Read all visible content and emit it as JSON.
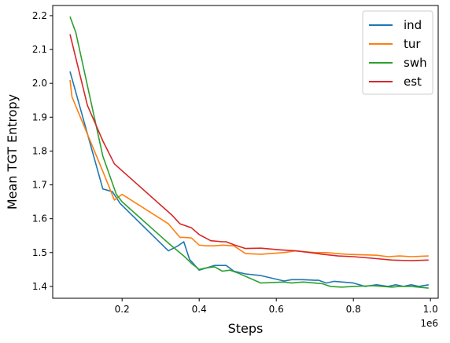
{
  "chart_data": {
    "type": "line",
    "xlabel": "Steps",
    "ylabel": "Mean TGT Entropy",
    "x_scale_label": "1e6",
    "xlim": [
      20000,
      1020000
    ],
    "ylim": [
      1.365,
      2.23
    ],
    "x_ticks": [
      200000,
      400000,
      600000,
      800000,
      1000000
    ],
    "x_tick_labels": [
      "0.2",
      "0.4",
      "0.6",
      "0.8",
      "1.0"
    ],
    "y_ticks": [
      1.4,
      1.5,
      1.6,
      1.7,
      1.8,
      1.9,
      2.0,
      2.1,
      2.2
    ],
    "y_tick_labels": [
      "1.4",
      "1.5",
      "1.6",
      "1.7",
      "1.8",
      "1.9",
      "2.0",
      "2.1",
      "2.2"
    ],
    "grid": false,
    "legend_position": "top-right",
    "series": [
      {
        "name": "ind",
        "color": "#1f77b4",
        "x": [
          65000,
          150000,
          175000,
          195000,
          320000,
          345000,
          360000,
          375000,
          400000,
          440000,
          470000,
          490000,
          520000,
          560000,
          620000,
          640000,
          670000,
          700000,
          710000,
          730000,
          750000,
          780000,
          800000,
          830000,
          860000,
          890000,
          910000,
          930000,
          950000,
          970000,
          995000
        ],
        "y": [
          2.035,
          1.688,
          1.68,
          1.645,
          1.505,
          1.52,
          1.532,
          1.48,
          1.448,
          1.462,
          1.462,
          1.445,
          1.437,
          1.432,
          1.416,
          1.42,
          1.42,
          1.418,
          1.418,
          1.41,
          1.415,
          1.412,
          1.41,
          1.4,
          1.405,
          1.4,
          1.405,
          1.4,
          1.405,
          1.4,
          1.405
        ]
      },
      {
        "name": "tur",
        "color": "#ff7f0e",
        "x": [
          65000,
          70000,
          150000,
          180000,
          200000,
          320000,
          350000,
          360000,
          380000,
          400000,
          420000,
          440000,
          460000,
          490000,
          520000,
          560000,
          620000,
          650000,
          700000,
          730000,
          780000,
          860000,
          890000,
          920000,
          950000,
          995000
        ],
        "y": [
          2.01,
          1.96,
          1.74,
          1.655,
          1.672,
          1.585,
          1.545,
          1.545,
          1.543,
          1.522,
          1.52,
          1.52,
          1.522,
          1.52,
          1.497,
          1.495,
          1.5,
          1.505,
          1.5,
          1.5,
          1.495,
          1.492,
          1.488,
          1.49,
          1.488,
          1.49
        ]
      },
      {
        "name": "swh",
        "color": "#2ca02c",
        "x": [
          65000,
          80000,
          150000,
          185000,
          200000,
          320000,
          360000,
          380000,
          400000,
          420000,
          440000,
          460000,
          480000,
          500000,
          560000,
          620000,
          640000,
          670000,
          700000,
          720000,
          740000,
          770000,
          800000,
          850000,
          900000,
          920000,
          950000,
          995000
        ],
        "y": [
          2.197,
          2.15,
          1.785,
          1.672,
          1.65,
          1.528,
          1.49,
          1.468,
          1.45,
          1.455,
          1.458,
          1.445,
          1.448,
          1.44,
          1.41,
          1.413,
          1.41,
          1.413,
          1.41,
          1.408,
          1.4,
          1.398,
          1.4,
          1.402,
          1.398,
          1.4,
          1.4,
          1.395
        ]
      },
      {
        "name": "est",
        "color": "#d62728",
        "x": [
          65000,
          110000,
          150000,
          180000,
          330000,
          350000,
          380000,
          400000,
          430000,
          460000,
          470000,
          490000,
          520000,
          560000,
          610000,
          650000,
          700000,
          720000,
          760000,
          800000,
          860000,
          900000,
          950000,
          995000
        ],
        "y": [
          2.145,
          1.935,
          1.83,
          1.762,
          1.61,
          1.585,
          1.573,
          1.553,
          1.535,
          1.532,
          1.532,
          1.523,
          1.512,
          1.513,
          1.508,
          1.505,
          1.498,
          1.495,
          1.49,
          1.488,
          1.482,
          1.478,
          1.476,
          1.478
        ]
      }
    ]
  }
}
